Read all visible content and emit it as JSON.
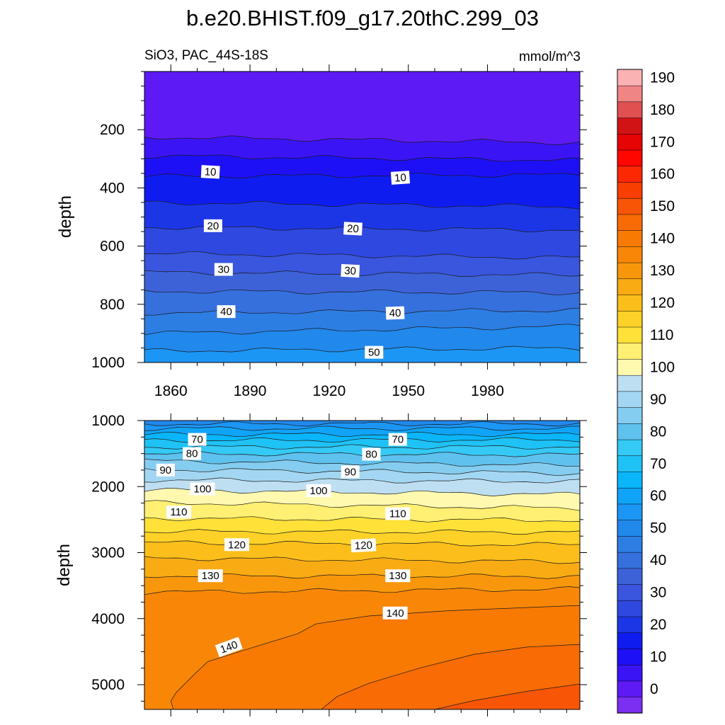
{
  "title": "b.e20.BHIST.f09_g17.20thC.299_03",
  "chart_data": [
    {
      "type": "heatmap",
      "panel": "upper",
      "subtitle_left": "SiO3, PAC_44S-18S",
      "subtitle_right": "mmol/m^3",
      "ylabel": "depth",
      "xlim": [
        1850,
        2015
      ],
      "ylim": [
        1000,
        0
      ],
      "x_ticks": [
        1860,
        1890,
        1920,
        1950,
        1980
      ],
      "x_tick_labels": [
        "1860",
        "1890",
        "1920",
        "1950",
        "1980"
      ],
      "y_ticks": [
        200,
        400,
        600,
        800,
        1000
      ],
      "y_tick_labels": [
        "200",
        "400",
        "600",
        "800",
        "1000"
      ],
      "contour_levels": [
        5,
        10,
        15,
        20,
        25,
        30,
        35,
        40,
        45,
        50,
        55
      ],
      "contour_depths_start": [
        225,
        290,
        360,
        450,
        535,
        625,
        690,
        755,
        830,
        900,
        960
      ],
      "contour_depths_end": [
        245,
        305,
        355,
        465,
        545,
        640,
        700,
        760,
        820,
        875,
        950
      ],
      "contour_labels": [
        {
          "value": "10",
          "x": 1875,
          "depth": 345,
          "angle": 3
        },
        {
          "value": "10",
          "x": 1947,
          "depth": 365,
          "angle": -4
        },
        {
          "value": "20",
          "x": 1876,
          "depth": 530,
          "angle": 0
        },
        {
          "value": "20",
          "x": 1929,
          "depth": 540,
          "angle": 3
        },
        {
          "value": "30",
          "x": 1880,
          "depth": 680,
          "angle": 0
        },
        {
          "value": "30",
          "x": 1928,
          "depth": 685,
          "angle": 3
        },
        {
          "value": "40",
          "x": 1881,
          "depth": 825,
          "angle": 0
        },
        {
          "value": "40",
          "x": 1945,
          "depth": 830,
          "angle": -2
        },
        {
          "value": "50",
          "x": 1937,
          "depth": 965,
          "angle": 0
        }
      ]
    },
    {
      "type": "heatmap",
      "panel": "lower",
      "ylabel": "depth",
      "xlim": [
        1850,
        2015
      ],
      "ylim": [
        5375,
        1000
      ],
      "y_ticks": [
        1000,
        2000,
        3000,
        4000,
        5000
      ],
      "y_tick_labels": [
        "1000",
        "2000",
        "3000",
        "4000",
        "5000"
      ],
      "contour_levels": [
        55,
        60,
        65,
        70,
        75,
        80,
        85,
        90,
        95,
        100,
        105,
        110,
        115,
        120,
        125,
        130,
        135
      ],
      "contour_depths_start": [
        1050,
        1120,
        1210,
        1300,
        1400,
        1500,
        1610,
        1740,
        1900,
        2050,
        2240,
        2480,
        2680,
        2850,
        3080,
        3350,
        3600
      ],
      "contour_depths_end": [
        1050,
        1120,
        1210,
        1290,
        1400,
        1520,
        1680,
        1800,
        1920,
        2120,
        2330,
        2510,
        2690,
        2880,
        3140,
        3360,
        3550
      ],
      "contour_labels": [
        {
          "value": "70",
          "x": 1870,
          "depth": 1285,
          "angle": 0
        },
        {
          "value": "70",
          "x": 1946,
          "depth": 1285,
          "angle": 0
        },
        {
          "value": "80",
          "x": 1868,
          "depth": 1500,
          "angle": 0
        },
        {
          "value": "80",
          "x": 1936,
          "depth": 1510,
          "angle": 0
        },
        {
          "value": "90",
          "x": 1858,
          "depth": 1750,
          "angle": 0
        },
        {
          "value": "90",
          "x": 1928,
          "depth": 1775,
          "angle": 0
        },
        {
          "value": "100",
          "x": 1872,
          "depth": 2035,
          "angle": 0
        },
        {
          "value": "100",
          "x": 1916,
          "depth": 2060,
          "angle": 0
        },
        {
          "value": "110",
          "x": 1863,
          "depth": 2385,
          "angle": 0
        },
        {
          "value": "110",
          "x": 1946,
          "depth": 2410,
          "angle": 0
        },
        {
          "value": "120",
          "x": 1885,
          "depth": 2880,
          "angle": 0
        },
        {
          "value": "120",
          "x": 1933,
          "depth": 2890,
          "angle": -3
        },
        {
          "value": "130",
          "x": 1875,
          "depth": 3350,
          "angle": 0
        },
        {
          "value": "130",
          "x": 1946,
          "depth": 3350,
          "angle": 0
        },
        {
          "value": "140",
          "x": 1945,
          "depth": 3915,
          "angle": 0
        },
        {
          "value": "140",
          "x": 1882,
          "depth": 4430,
          "angle": -20
        }
      ]
    }
  ],
  "shared_x_axis": {
    "x_ticks": [
      1860,
      1890,
      1920,
      1950,
      1980
    ],
    "x_tick_labels": [
      "1860",
      "1890",
      "1920",
      "1950",
      "1980"
    ]
  },
  "colorbar": {
    "tick_labels": [
      "0",
      "10",
      "20",
      "30",
      "40",
      "50",
      "60",
      "70",
      "80",
      "90",
      "100",
      "110",
      "120",
      "130",
      "140",
      "150",
      "160",
      "170",
      "180",
      "190"
    ],
    "tick_values": [
      0,
      10,
      20,
      30,
      40,
      50,
      60,
      70,
      80,
      90,
      100,
      110,
      120,
      130,
      140,
      150,
      160,
      170,
      180,
      190
    ],
    "bin_edges_start": -5,
    "bin_width": 5,
    "colors": [
      "#7B2FF0",
      "#5E1AF5",
      "#3B14F5",
      "#1E10F5",
      "#0F1CF0",
      "#1C36E6",
      "#2F48E0",
      "#3A55DE",
      "#3D62D8",
      "#3570DC",
      "#2D7EE3",
      "#2188EC",
      "#1C96F5",
      "#10A4F8",
      "#0AB5FA",
      "#1FC2F5",
      "#34CAF5",
      "#5FC1EE",
      "#85CDF0",
      "#A3D6F2",
      "#BEDFF1",
      "#FFF9B0",
      "#FFEF72",
      "#FFE138",
      "#FDD127",
      "#FBBE1A",
      "#F8AB13",
      "#F8970C",
      "#F88708",
      "#F87A03",
      "#F86B05",
      "#F85606",
      "#F83E00",
      "#FB2803",
      "#FF0700",
      "#E60404",
      "#D21316",
      "#E05051",
      "#F08585",
      "#FBB2B3"
    ]
  }
}
